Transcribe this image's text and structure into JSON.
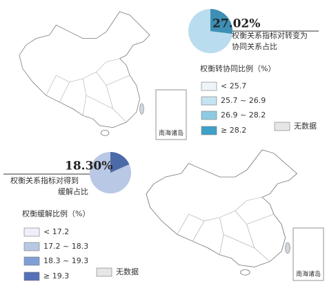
{
  "panels": [
    {
      "pie": {
        "value": 27.02,
        "label": "27.02%"
      },
      "caption": [
        "权衡关系指标对转变为",
        "协同关系占比"
      ],
      "legend": {
        "title": "权衡转协同比例（%）",
        "items": [
          {
            "label": "< 25.7",
            "color": "#eef5fa"
          },
          {
            "label": "25.7 ~ 26.9",
            "color": "#c6e3f1"
          },
          {
            "label": "26.9 ~ 28.2",
            "color": "#8ecbe3"
          },
          {
            "label": "≥ 28.2",
            "color": "#3fa0c8"
          }
        ],
        "no_data": "无数据"
      },
      "inset": "南海诸岛"
    },
    {
      "pie": {
        "value": 18.3,
        "label": "18.30%"
      },
      "caption": [
        "权衡关系指标对得到",
        "缓解占比"
      ],
      "legend": {
        "title": "权衡缓解比例（%）",
        "items": [
          {
            "label": "< 17.2",
            "color": "#eef0f7"
          },
          {
            "label": "17.2 ~ 18.3",
            "color": "#b8c7e4"
          },
          {
            "label": "18.3 ~ 19.3",
            "color": "#7f9fd6"
          },
          {
            "label": "≥ 19.3",
            "color": "#5470b8"
          }
        ],
        "no_data": "无数据"
      },
      "inset": "南海诸岛"
    }
  ]
}
